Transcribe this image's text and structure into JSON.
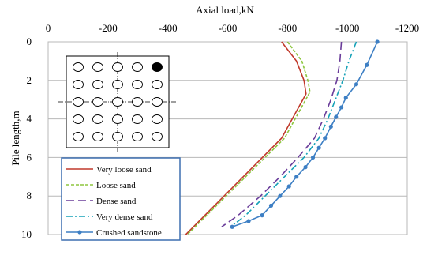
{
  "chart_data": {
    "type": "line",
    "xlabel": "Axial load,kN",
    "ylabel": "Pile length,m",
    "xlim": [
      0,
      -1200
    ],
    "ylim": [
      0,
      10
    ],
    "x_axis_position": "top",
    "y_axis_inverted": true,
    "xticks": [
      "0",
      "-200",
      "-400",
      "-600",
      "-800",
      "-1000",
      "-1200"
    ],
    "yticks": [
      "0",
      "2",
      "4",
      "6",
      "8",
      "10"
    ],
    "grid": "horizontal",
    "legend_position": "bottom-left",
    "series": [
      {
        "name": "Very loose sand",
        "color": "#c0392b",
        "dash": "solid",
        "markers": false,
        "points": [
          [
            -780,
            0
          ],
          [
            -830,
            1
          ],
          [
            -855,
            2
          ],
          [
            -862,
            2.7
          ],
          [
            -780,
            5
          ],
          [
            -460,
            10
          ]
        ]
      },
      {
        "name": "Loose sand",
        "color": "#8dc63f",
        "dash": "dashed",
        "markers": false,
        "points": [
          [
            -800,
            0
          ],
          [
            -848,
            1
          ],
          [
            -868,
            2
          ],
          [
            -875,
            2.6
          ],
          [
            -790,
            5
          ],
          [
            -465,
            10
          ]
        ]
      },
      {
        "name": "Dense sand",
        "color": "#6a3d9a",
        "dash": "longdash",
        "markers": false,
        "points": [
          [
            -980,
            0
          ],
          [
            -975,
            1
          ],
          [
            -965,
            2
          ],
          [
            -945,
            3
          ],
          [
            -920,
            4
          ],
          [
            -890,
            5
          ],
          [
            -835,
            6
          ],
          [
            -775,
            7
          ],
          [
            -710,
            8
          ],
          [
            -635,
            9
          ],
          [
            -580,
            9.6
          ]
        ]
      },
      {
        "name": "Very dense sand",
        "color": "#17a2b8",
        "dash": "dashdot",
        "markers": false,
        "points": [
          [
            -1030,
            0
          ],
          [
            -1005,
            1
          ],
          [
            -985,
            2
          ],
          [
            -960,
            3
          ],
          [
            -935,
            4
          ],
          [
            -905,
            5
          ],
          [
            -855,
            6
          ],
          [
            -790,
            7
          ],
          [
            -725,
            8
          ],
          [
            -660,
            9
          ],
          [
            -610,
            9.6
          ]
        ]
      },
      {
        "name": "Crushed sandstone",
        "color": "#3d7fc4",
        "dash": "solid",
        "markers": true,
        "points": [
          [
            -1100,
            0
          ],
          [
            -1065,
            1.2
          ],
          [
            -1030,
            2.2
          ],
          [
            -995,
            2.9
          ],
          [
            -980,
            3.4
          ],
          [
            -962,
            3.9
          ],
          [
            -945,
            4.4
          ],
          [
            -925,
            5
          ],
          [
            -905,
            5.5
          ],
          [
            -885,
            6
          ],
          [
            -860,
            6.5
          ],
          [
            -830,
            7
          ],
          [
            -805,
            7.5
          ],
          [
            -775,
            8
          ],
          [
            -745,
            8.5
          ],
          [
            -715,
            9
          ],
          [
            -670,
            9.3
          ],
          [
            -615,
            9.6
          ]
        ]
      }
    ]
  },
  "inset": {
    "name": "pile-group-layout",
    "rows": 5,
    "cols": 5,
    "highlighted": [
      0,
      4
    ]
  }
}
